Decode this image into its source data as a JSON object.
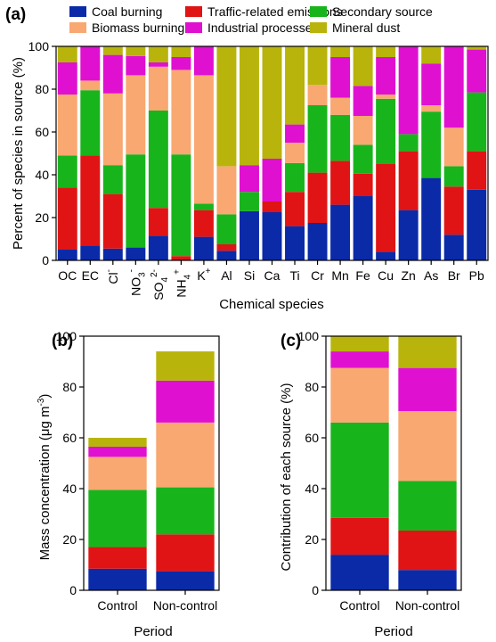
{
  "colors": {
    "coal": "#0a2aa8",
    "traffic": "#e01414",
    "secondary": "#18b41c",
    "biomass": "#f8a870",
    "industrial": "#e010d0",
    "dust": "#b8b40c"
  },
  "chart_data": [
    {
      "panel": "(a)",
      "type": "bar",
      "stacked": true,
      "xlabel": "Chemical species",
      "ylabel": "Percent of species in source (%)",
      "ylim": [
        0,
        100
      ],
      "yticks": [
        0,
        20,
        40,
        60,
        80,
        100
      ],
      "categories": [
        "OC",
        "EC",
        "Cl-",
        "NO3-",
        "SO42-",
        "NH4+",
        "K+",
        "Al",
        "Si",
        "Ca",
        "Ti",
        "Cr",
        "Mn",
        "Fe",
        "Cu",
        "Zn",
        "As",
        "Br",
        "Pb"
      ],
      "category_labels": [
        {
          "base": "OC",
          "sup": "",
          "sub": ""
        },
        {
          "base": "EC",
          "sup": "",
          "sub": ""
        },
        {
          "base": "Cl",
          "sup": "-",
          "sub": ""
        },
        {
          "base": "NO",
          "sub": "3",
          "sup": "-"
        },
        {
          "base": "SO",
          "sub": "4",
          "sup": "2-"
        },
        {
          "base": "NH",
          "sub": "4",
          "sup": "+"
        },
        {
          "base": "K",
          "sup": "+",
          "sub": ""
        },
        {
          "base": "Al",
          "sup": "",
          "sub": ""
        },
        {
          "base": "Si",
          "sup": "",
          "sub": ""
        },
        {
          "base": "Ca",
          "sup": "",
          "sub": ""
        },
        {
          "base": "Ti",
          "sup": "",
          "sub": ""
        },
        {
          "base": "Cr",
          "sup": "",
          "sub": ""
        },
        {
          "base": "Mn",
          "sup": "",
          "sub": ""
        },
        {
          "base": "Fe",
          "sup": "",
          "sub": ""
        },
        {
          "base": "Cu",
          "sup": "",
          "sub": ""
        },
        {
          "base": "Zn",
          "sup": "",
          "sub": ""
        },
        {
          "base": "As",
          "sup": "",
          "sub": ""
        },
        {
          "base": "Br",
          "sup": "",
          "sub": ""
        },
        {
          "base": "Pb",
          "sup": "",
          "sub": ""
        }
      ],
      "legend": {
        "placement": "top",
        "columns": 3
      },
      "series": [
        {
          "name": "Coal burning",
          "color_key": "coal",
          "values": [
            5,
            7,
            5.5,
            6,
            11.5,
            0,
            11,
            4.5,
            23,
            22.5,
            16,
            17.5,
            26,
            30,
            4,
            23.5,
            38.5,
            12,
            33
          ]
        },
        {
          "name": "Traffic-related emissions",
          "color_key": "traffic",
          "values": [
            29,
            42,
            25.5,
            0,
            13,
            2,
            12.5,
            3,
            0,
            5,
            16,
            23.5,
            20.5,
            10.5,
            41,
            27.5,
            0,
            22.5,
            18
          ]
        },
        {
          "name": "Secondary source",
          "color_key": "secondary",
          "values": [
            15,
            30.5,
            13.5,
            43.5,
            45.5,
            47.5,
            3,
            14,
            9,
            0,
            13.5,
            31.5,
            21.5,
            13.5,
            30.5,
            8,
            31,
            9.5,
            27.5
          ]
        },
        {
          "name": "Biomass burning",
          "color_key": "biomass",
          "values": [
            28.5,
            4.5,
            33.5,
            37,
            20.5,
            39.5,
            60,
            22.5,
            0,
            0,
            9.5,
            9.5,
            8,
            13.5,
            2,
            0,
            3,
            18,
            0
          ]
        },
        {
          "name": "Industrial processes",
          "color_key": "industrial",
          "values": [
            15,
            16,
            18,
            9,
            2,
            6,
            13.5,
            0,
            12.5,
            20,
            8.5,
            0,
            19,
            14,
            17.5,
            41,
            19.5,
            38,
            20
          ]
        },
        {
          "name": "Mineral dust",
          "color_key": "dust",
          "values": [
            7.5,
            0,
            4,
            4.5,
            7.5,
            5,
            0,
            56,
            55.5,
            52.5,
            36.5,
            18,
            5,
            18.5,
            5,
            0,
            8,
            0,
            1.5
          ]
        }
      ]
    },
    {
      "panel": "(b)",
      "type": "bar",
      "stacked": true,
      "xlabel": "Period",
      "ylabel": "Mass concentration (μg m⁻³)",
      "ylim": [
        0,
        100
      ],
      "yticks": [
        0,
        20,
        40,
        60,
        80,
        100
      ],
      "categories": [
        "Control",
        "Non-control"
      ],
      "series": [
        {
          "name": "Coal burning",
          "color_key": "coal",
          "values": [
            8.5,
            7.5
          ]
        },
        {
          "name": "Traffic-related emissions",
          "color_key": "traffic",
          "values": [
            8.5,
            14.5
          ]
        },
        {
          "name": "Secondary source",
          "color_key": "secondary",
          "values": [
            22.5,
            18.5
          ]
        },
        {
          "name": "Biomass burning",
          "color_key": "biomass",
          "values": [
            13,
            25.5
          ]
        },
        {
          "name": "Industrial processes",
          "color_key": "industrial",
          "values": [
            4,
            16.5
          ]
        },
        {
          "name": "Mineral dust",
          "color_key": "dust",
          "values": [
            3.5,
            11.5
          ]
        }
      ]
    },
    {
      "panel": "(c)",
      "type": "bar",
      "stacked": true,
      "xlabel": "Period",
      "ylabel": "Contribution of each source (%)",
      "ylim": [
        0,
        100
      ],
      "yticks": [
        0,
        20,
        40,
        60,
        80,
        100
      ],
      "categories": [
        "Control",
        "Non-control"
      ],
      "series": [
        {
          "name": "Coal burning",
          "color_key": "coal",
          "values": [
            14,
            8
          ]
        },
        {
          "name": "Traffic-related emissions",
          "color_key": "traffic",
          "values": [
            14.5,
            15.5
          ]
        },
        {
          "name": "Secondary source",
          "color_key": "secondary",
          "values": [
            37.5,
            19.5
          ]
        },
        {
          "name": "Biomass burning",
          "color_key": "biomass",
          "values": [
            21.5,
            27.5
          ]
        },
        {
          "name": "Industrial processes",
          "color_key": "industrial",
          "values": [
            6.5,
            17
          ]
        },
        {
          "name": "Mineral dust",
          "color_key": "dust",
          "values": [
            6,
            12.5
          ]
        }
      ]
    }
  ]
}
